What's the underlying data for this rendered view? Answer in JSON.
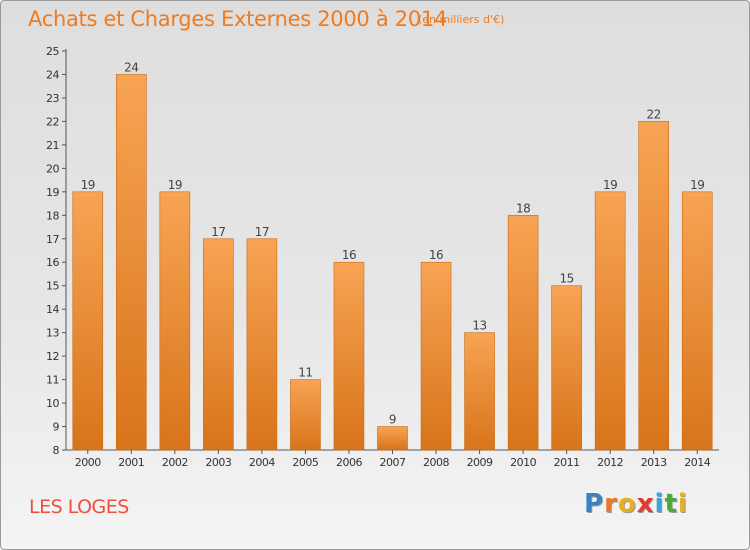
{
  "title": "Achats et Charges Externes 2000 à 2014",
  "subtitle": "(en milliers d'€)",
  "location": "LES LOGES",
  "brand": {
    "letters": [
      "P",
      "r",
      "o",
      "x",
      "i",
      "t",
      "i"
    ],
    "colors": [
      "#3b82c4",
      "#e8792a",
      "#e8b020",
      "#e23a2c",
      "#3ba4d8",
      "#4aa83c",
      "#e8b020"
    ]
  },
  "chart_data": {
    "type": "bar",
    "title": "Achats et Charges Externes 2000 à 2014",
    "subtitle": "(en milliers d'€)",
    "categories": [
      "2000",
      "2001",
      "2002",
      "2003",
      "2004",
      "2005",
      "2006",
      "2007",
      "2008",
      "2009",
      "2010",
      "2011",
      "2012",
      "2013",
      "2014"
    ],
    "values": [
      19,
      24,
      19,
      17,
      17,
      11,
      16,
      9,
      16,
      13,
      18,
      15,
      19,
      22,
      19
    ],
    "data_labels": [
      "19",
      "24",
      "19",
      "17",
      "17",
      "11",
      "16",
      "9",
      "16",
      "13",
      "18",
      "15",
      "19",
      "22",
      "19"
    ],
    "y_ticks": [
      "8",
      "9",
      "10",
      "11",
      "12",
      "13",
      "14",
      "15",
      "16",
      "17",
      "18",
      "19",
      "20",
      "21",
      "22",
      "23",
      "24",
      "25"
    ],
    "ylim": [
      8,
      25
    ],
    "grid": false,
    "bar_color": "#f0902a",
    "xlabel": "",
    "ylabel": ""
  }
}
